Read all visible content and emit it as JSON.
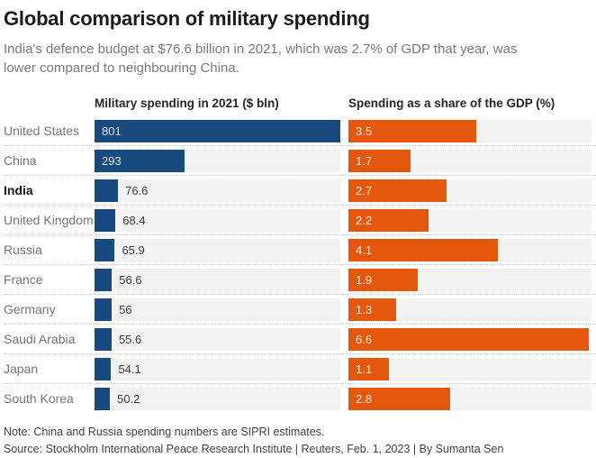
{
  "title": "Global comparison of military spending",
  "subtitle": "India's defence budget at $76.6 billion in 2021, which was 2.7% of GDP that year, was lower compared to neighbouring China.",
  "colors": {
    "spending_blue": "#18497F",
    "gdp_orange": "#E4580D",
    "track_gray": "#F2F2F1"
  },
  "chart_data": {
    "type": "bar",
    "orientation": "horizontal",
    "categories": [
      "United States",
      "China",
      "India",
      "United Kingdom",
      "Russia",
      "France",
      "Germany",
      "Saudi Arabia",
      "Japan",
      "South Korea"
    ],
    "highlighted_category": "India",
    "series": [
      {
        "name": "Military spending in 2021 ($ bln)",
        "values": [
          801,
          293,
          76.6,
          68.4,
          65.9,
          56.6,
          56,
          55.6,
          54.1,
          50.2
        ],
        "labels": [
          "801",
          "293",
          "76.6",
          "68.4",
          "65.9",
          "56.6",
          "56",
          "55.6",
          "54.1",
          "50.2"
        ],
        "color": "#18497F",
        "xlim": [
          0,
          801
        ]
      },
      {
        "name": "Spending as a share of the GDP (%)",
        "values": [
          3.5,
          1.7,
          2.7,
          2.2,
          4.1,
          1.9,
          1.3,
          6.6,
          1.1,
          2.8
        ],
        "labels": [
          "3.5",
          "1.7",
          "2.7",
          "2.2",
          "4.1",
          "1.9",
          "1.3",
          "6.6",
          "1.1",
          "2.8"
        ],
        "color": "#E4580D",
        "xlim": [
          0,
          6.67
        ]
      }
    ],
    "grid": false,
    "legend": false,
    "value_labels": "on-bar"
  },
  "footer": {
    "note": "Note: China and Russia spending numbers are SIPRI estimates.",
    "source": "Source: Stockholm International Peace Research Institute | Reuters, Feb. 1, 2023 | By Sumanta Sen"
  }
}
